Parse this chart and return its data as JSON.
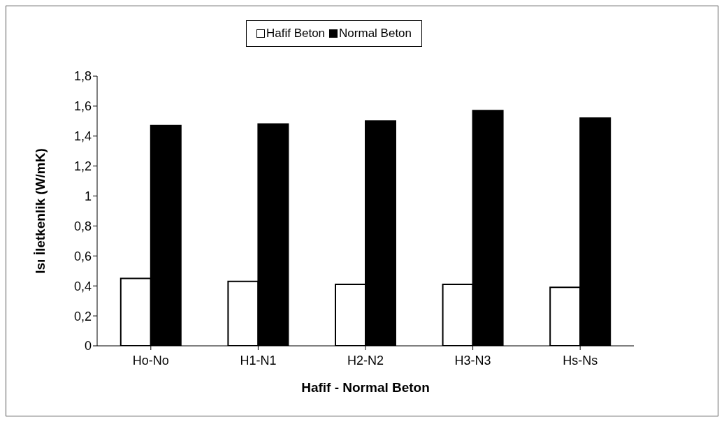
{
  "chart_data": {
    "type": "bar",
    "xlabel": "Hafif - Normal Beton",
    "ylabel": "Isı İletkenlik (W/mK)",
    "categories": [
      "Ho-No",
      "H1-N1",
      "H2-N2",
      "H3-N3",
      "Hs-Ns"
    ],
    "series": [
      {
        "name": "Hafif Beton",
        "color": "#ffffff",
        "values": [
          0.45,
          0.43,
          0.41,
          0.41,
          0.39
        ]
      },
      {
        "name": "Normal Beton",
        "color": "#000000",
        "values": [
          1.47,
          1.48,
          1.5,
          1.57,
          1.52
        ]
      }
    ],
    "ylim": [
      0,
      1.8
    ],
    "yticks": [
      0,
      {
        "value": 0.2,
        "label": "0,2"
      },
      {
        "value": 0.4,
        "label": "0,4"
      },
      {
        "value": 0.6,
        "label": "0,6"
      },
      {
        "value": 0.8,
        "label": "0,8"
      },
      1,
      {
        "value": 1.2,
        "label": "1,2"
      },
      {
        "value": 1.4,
        "label": "1,4"
      },
      {
        "value": 1.6,
        "label": "1,6"
      },
      {
        "value": 1.8,
        "label": "1,8"
      }
    ],
    "grid": false,
    "legend": "top"
  }
}
